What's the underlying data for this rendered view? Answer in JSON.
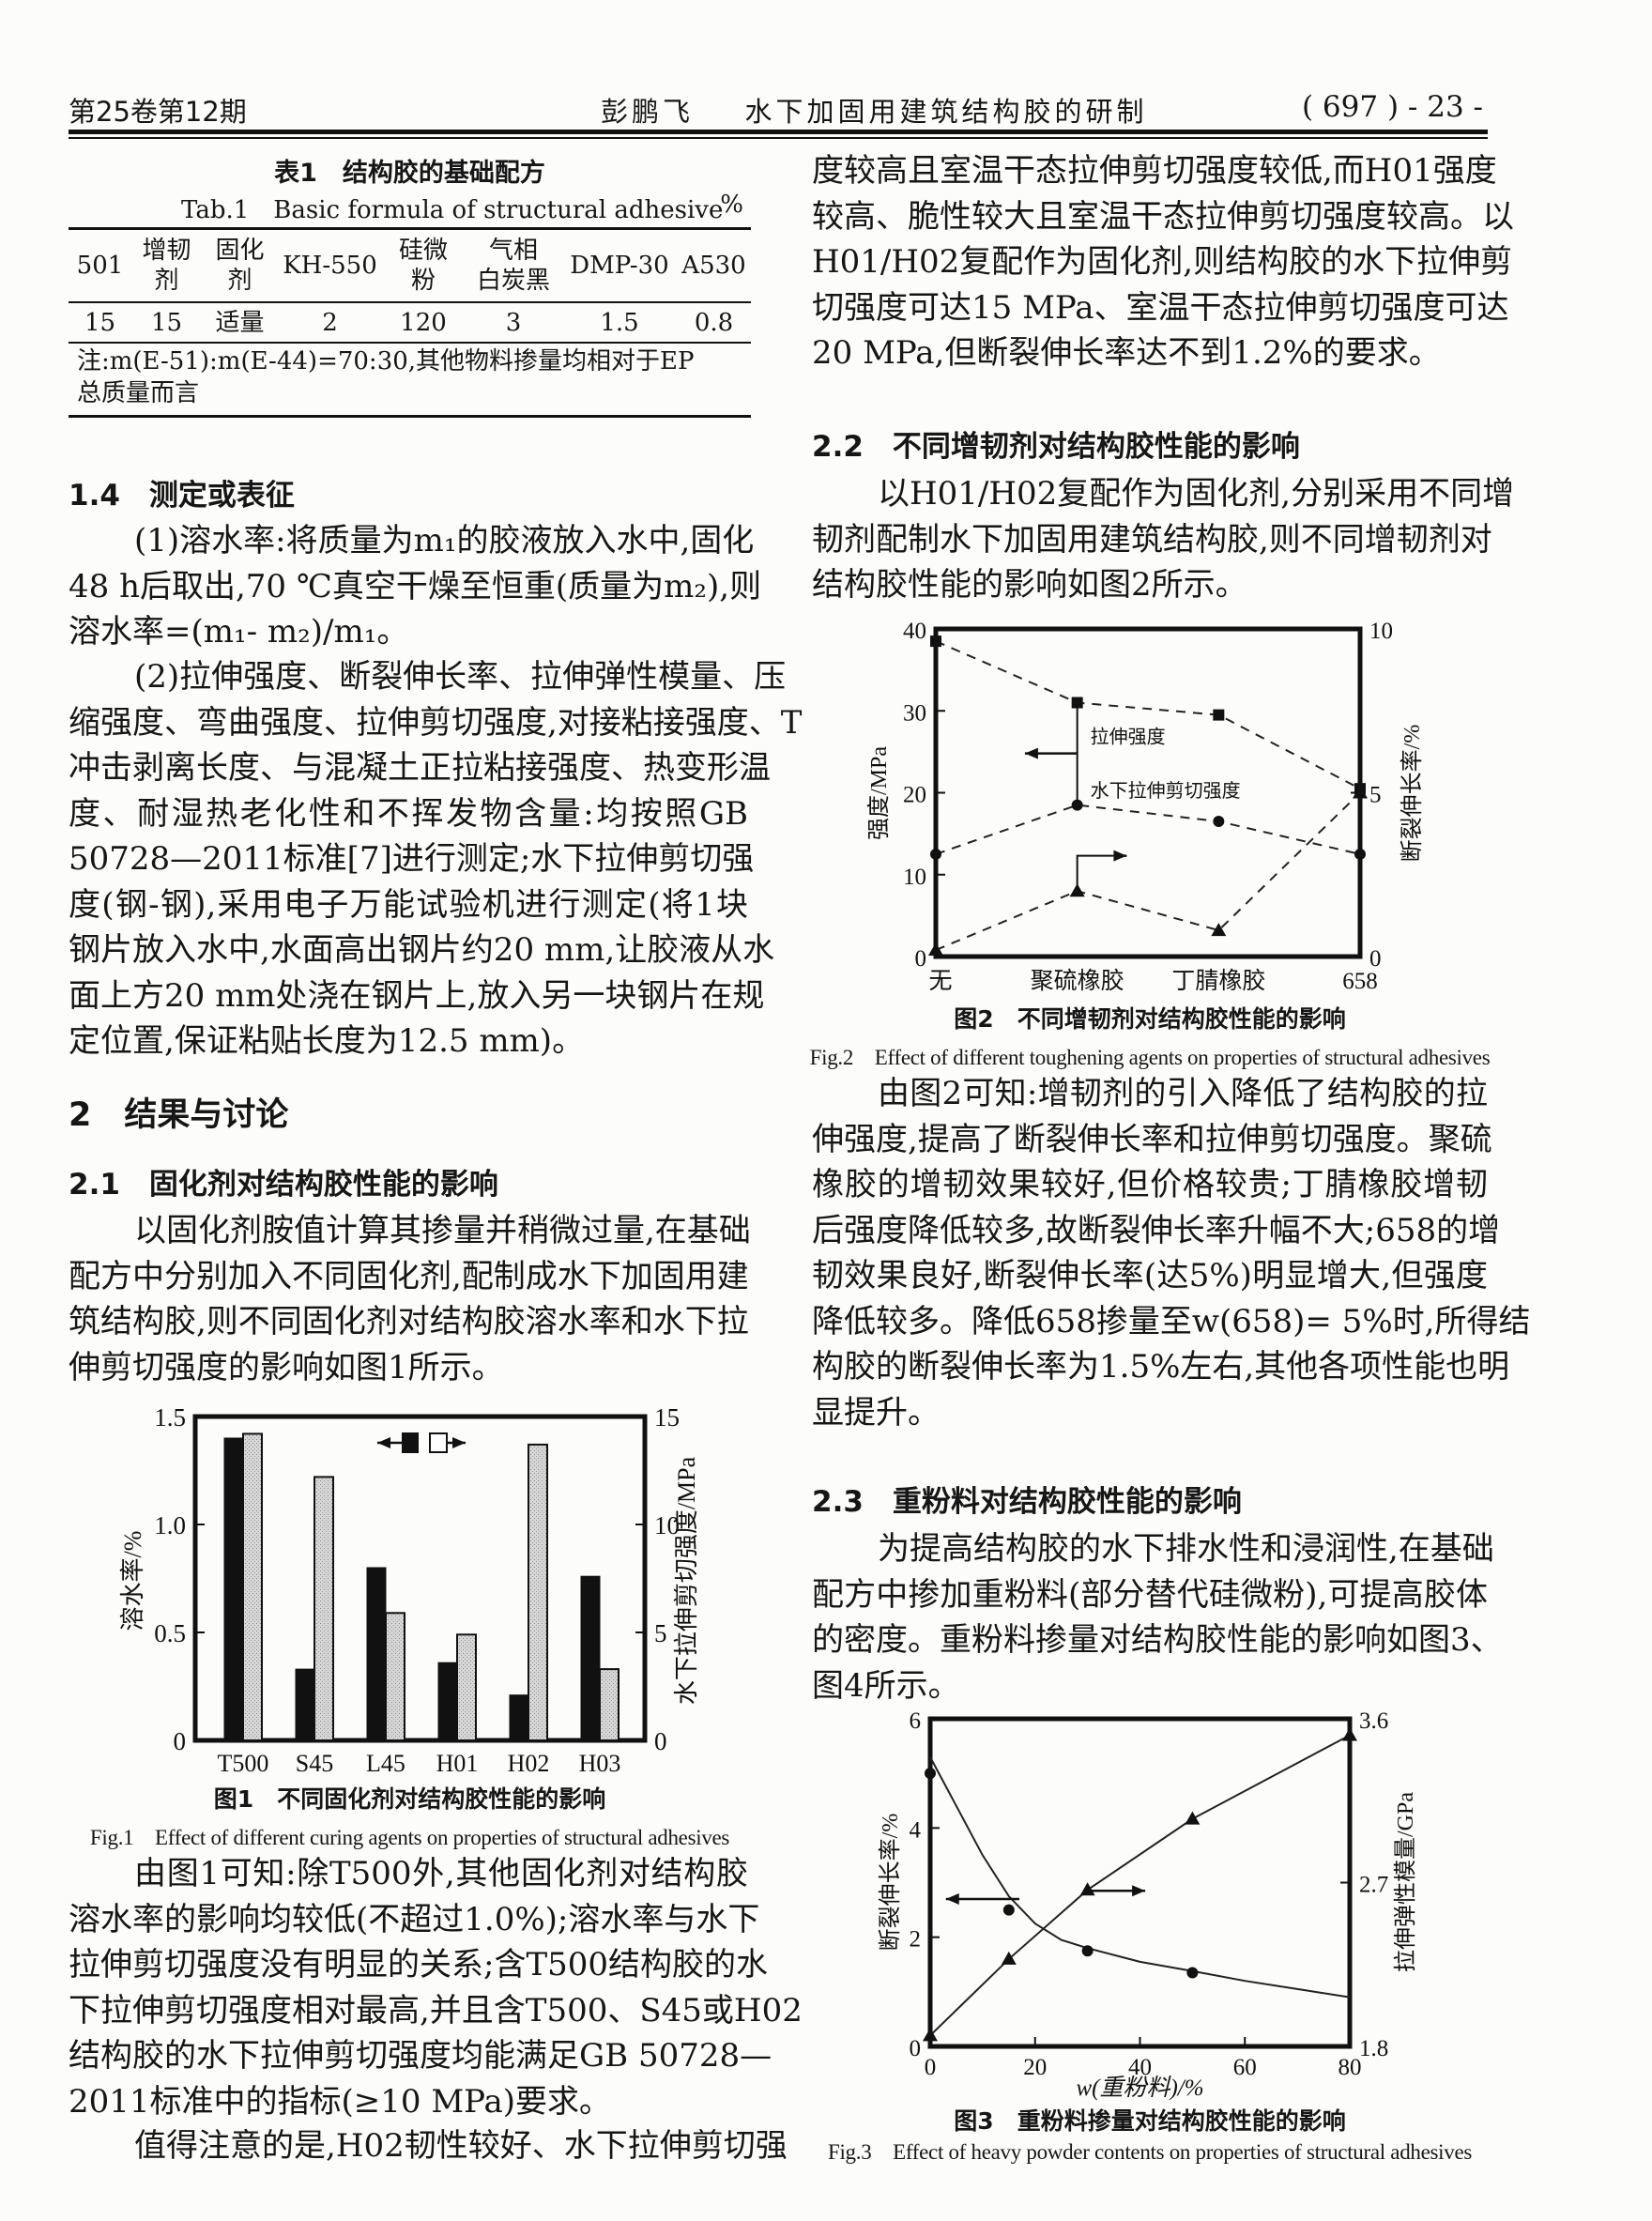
{
  "header": {
    "left": "第25卷第12期",
    "center_author": "彭鹏飞",
    "center_title": "水下加固用建筑结构胶的研制",
    "right": "( 697 ) - 23 -"
  },
  "table1": {
    "title_cn": "表1　结构胶的基础配方",
    "title_en": "Tab.1　Basic formula of structural adhesive",
    "unit": "%",
    "headers": [
      "501",
      "增韧\n剂",
      "固化\n剂",
      "KH-550",
      "硅微\n粉",
      "气相\n白炭黑",
      "DMP-30",
      "A530"
    ],
    "values": [
      "15",
      "15",
      "适量",
      "2",
      "120",
      "3",
      "1.5",
      "0.8"
    ],
    "note_lines": [
      "注:m(E-51):m(E-44)=70:30,其他物料掺量均相对于EP",
      "总质量而言"
    ]
  },
  "left": {
    "h_1_4": "1.4　测定或表征",
    "p_1_4_a": [
      "(1)溶水率:将质量为m₁的胶液放入水中,固化",
      "48 h后取出,70 ℃真空干燥至恒重(质量为m₂),则",
      "溶水率=(m₁- m₂)/m₁。"
    ],
    "p_1_4_b": [
      "(2)拉伸强度、断裂伸长率、拉伸弹性模量、压",
      "缩强度、弯曲强度、拉伸剪切强度,对接粘接强度、T",
      "冲击剥离长度、与混凝土正拉粘接强度、热变形温",
      "度、耐湿热老化性和不挥发物含量:均按照GB",
      "50728—2011标准[7]进行测定;水下拉伸剪切强",
      "度(钢-钢),采用电子万能试验机进行测定(将1块",
      "钢片放入水中,水面高出钢片约20 mm,让胶液从水",
      "面上方20 mm处浇在钢片上,放入另一块钢片在规",
      "定位置,保证粘贴长度为12.5 mm)。"
    ],
    "h_2": "2　结果与讨论",
    "h_2_1": "2.1　固化剂对结构胶性能的影响",
    "p_2_1_a": [
      "以固化剂胺值计算其掺量并稍微过量,在基础",
      "配方中分别加入不同固化剂,配制成水下加固用建",
      "筑结构胶,则不同固化剂对结构胶溶水率和水下拉",
      "伸剪切强度的影响如图1所示。"
    ],
    "p_2_1_b": [
      "由图1可知:除T500外,其他固化剂对结构胶",
      "溶水率的影响均较低(不超过1.0%);溶水率与水下",
      "拉伸剪切强度没有明显的关系;含T500结构胶的水",
      "下拉伸剪切强度相对最高,并且含T500、S45或H02",
      "结构胶的水下拉伸剪切强度均能满足GB 50728—",
      "2011标准中的指标(≥10 MPa)要求。"
    ],
    "p_2_1_c": [
      "值得注意的是,H02韧性较好、水下拉伸剪切强"
    ]
  },
  "right": {
    "p_cont": [
      "度较高且室温干态拉伸剪切强度较低,而H01强度",
      "较高、脆性较大且室温干态拉伸剪切强度较高。以",
      "H01/H02复配作为固化剂,则结构胶的水下拉伸剪",
      "切强度可达15 MPa、室温干态拉伸剪切强度可达",
      "20 MPa,但断裂伸长率达不到1.2%的要求。"
    ],
    "h_2_2": "2.2　不同增韧剂对结构胶性能的影响",
    "p_2_2_a": [
      "以H01/H02复配作为固化剂,分别采用不同增",
      "韧剂配制水下加固用建筑结构胶,则不同增韧剂对",
      "结构胶性能的影响如图2所示。"
    ],
    "p_2_2_b": [
      "由图2可知:增韧剂的引入降低了结构胶的拉",
      "伸强度,提高了断裂伸长率和拉伸剪切强度。聚硫",
      "橡胶的增韧效果较好,但价格较贵;丁腈橡胶增韧",
      "后强度降低较多,故断裂伸长率升幅不大;658的增",
      "韧效果良好,断裂伸长率(达5%)明显增大,但强度",
      "降低较多。降低658掺量至w(658)= 5%时,所得结",
      "构胶的断裂伸长率为1.5%左右,其他各项性能也明",
      "显提升。"
    ],
    "h_2_3": "2.3　重粉料对结构胶性能的影响",
    "p_2_3_a": [
      "为提高结构胶的水下排水性和浸润性,在基础",
      "配方中掺加重粉料(部分替代硅微粉),可提高胶体",
      "的密度。重粉料掺量对结构胶性能的影响如图3、",
      "图4所示。"
    ]
  },
  "chart_data": [
    {
      "type": "bar",
      "title": "图1　不同固化剂对结构胶性能的影响",
      "title_en": "Fig.1　Effect of different curing agents on properties of structural adhesives",
      "categories": [
        "T500",
        "S45",
        "L45",
        "H01",
        "H02",
        "H03"
      ],
      "ylabel_left": "溶水率/%",
      "ylabel_right": "水下拉伸剪切强度/MPa",
      "ylim_left": [
        0,
        1.5
      ],
      "ylim_right": [
        0,
        15
      ],
      "yticks_left": [
        "0",
        "0.5",
        "1.0",
        "1.5"
      ],
      "yticks_right": [
        "0",
        "5",
        "10",
        "15"
      ],
      "legend": "top-center",
      "series": [
        {
          "axis": "left",
          "color": "#111111",
          "values": [
            1.4,
            0.33,
            0.8,
            0.36,
            0.21,
            0.76
          ]
        },
        {
          "axis": "right",
          "color": "#c9c9c9",
          "values": [
            14.2,
            12.2,
            5.9,
            4.9,
            13.7,
            3.3
          ]
        }
      ]
    },
    {
      "type": "line",
      "title": "图2　不同增韧剂对结构胶性能的影响",
      "title_en": "Fig.2　Effect of different toughening agents on properties of structural adhesives",
      "categories": [
        "无",
        "聚硫橡胶",
        "丁腈橡胶",
        "658"
      ],
      "ylabel_left": "强度/MPa",
      "ylabel_right": "断裂伸长率/%",
      "ylim_left": [
        0,
        40
      ],
      "ylim_right": [
        0,
        10
      ],
      "yticks_left": [
        "0",
        "10",
        "20",
        "30",
        "40"
      ],
      "yticks_right": [
        "0",
        "5",
        "10"
      ],
      "line_style": "dashed",
      "series": [
        {
          "name": "拉伸强度",
          "axis": "left",
          "marker": "square",
          "values": [
            38.5,
            31.0,
            29.5,
            20.5
          ]
        },
        {
          "name": "水下拉伸剪切强度",
          "axis": "left",
          "marker": "circle",
          "values": [
            12.5,
            18.5,
            16.5,
            12.5
          ]
        },
        {
          "axis": "right",
          "marker": "triangle",
          "values": [
            0.2,
            2.0,
            0.8,
            5.0
          ]
        }
      ]
    },
    {
      "type": "scatter",
      "title": "图3　重粉料掺量对结构胶性能的影响",
      "title_en": "Fig.3　Effect of heavy powder contents on properties of structural adhesives",
      "xlabel": "w(重粉料)/%",
      "ylabel_left": "断裂伸长率/%",
      "ylabel_right": "拉伸弹性模量/GPa",
      "xlim": [
        0,
        80
      ],
      "ylim_left": [
        0,
        6
      ],
      "ylim_right": [
        1.8,
        3.6
      ],
      "xticks": [
        "0",
        "20",
        "40",
        "60",
        "80"
      ],
      "yticks_left": [
        "0",
        "2",
        "4",
        "6"
      ],
      "yticks_right": [
        "1.8",
        "2.7",
        "3.6"
      ],
      "series": [
        {
          "axis": "left",
          "marker": "circle",
          "x": [
            0,
            15,
            30,
            50
          ],
          "y": [
            5.0,
            2.5,
            1.75,
            1.35
          ],
          "fit_x": [
            0,
            5,
            10,
            15,
            20,
            25,
            30,
            40,
            50,
            60,
            70,
            80
          ],
          "fit_y": [
            5.3,
            4.4,
            3.5,
            2.75,
            2.25,
            1.95,
            1.8,
            1.55,
            1.38,
            1.2,
            1.05,
            0.9
          ]
        },
        {
          "axis": "right",
          "marker": "triangle",
          "x": [
            0,
            15,
            30,
            50,
            80
          ],
          "y": [
            1.86,
            2.28,
            2.66,
            3.05,
            3.51
          ],
          "fit_x": [
            0,
            15,
            30,
            50,
            80
          ],
          "fit_y": [
            1.86,
            2.28,
            2.66,
            3.05,
            3.51
          ]
        }
      ]
    }
  ]
}
